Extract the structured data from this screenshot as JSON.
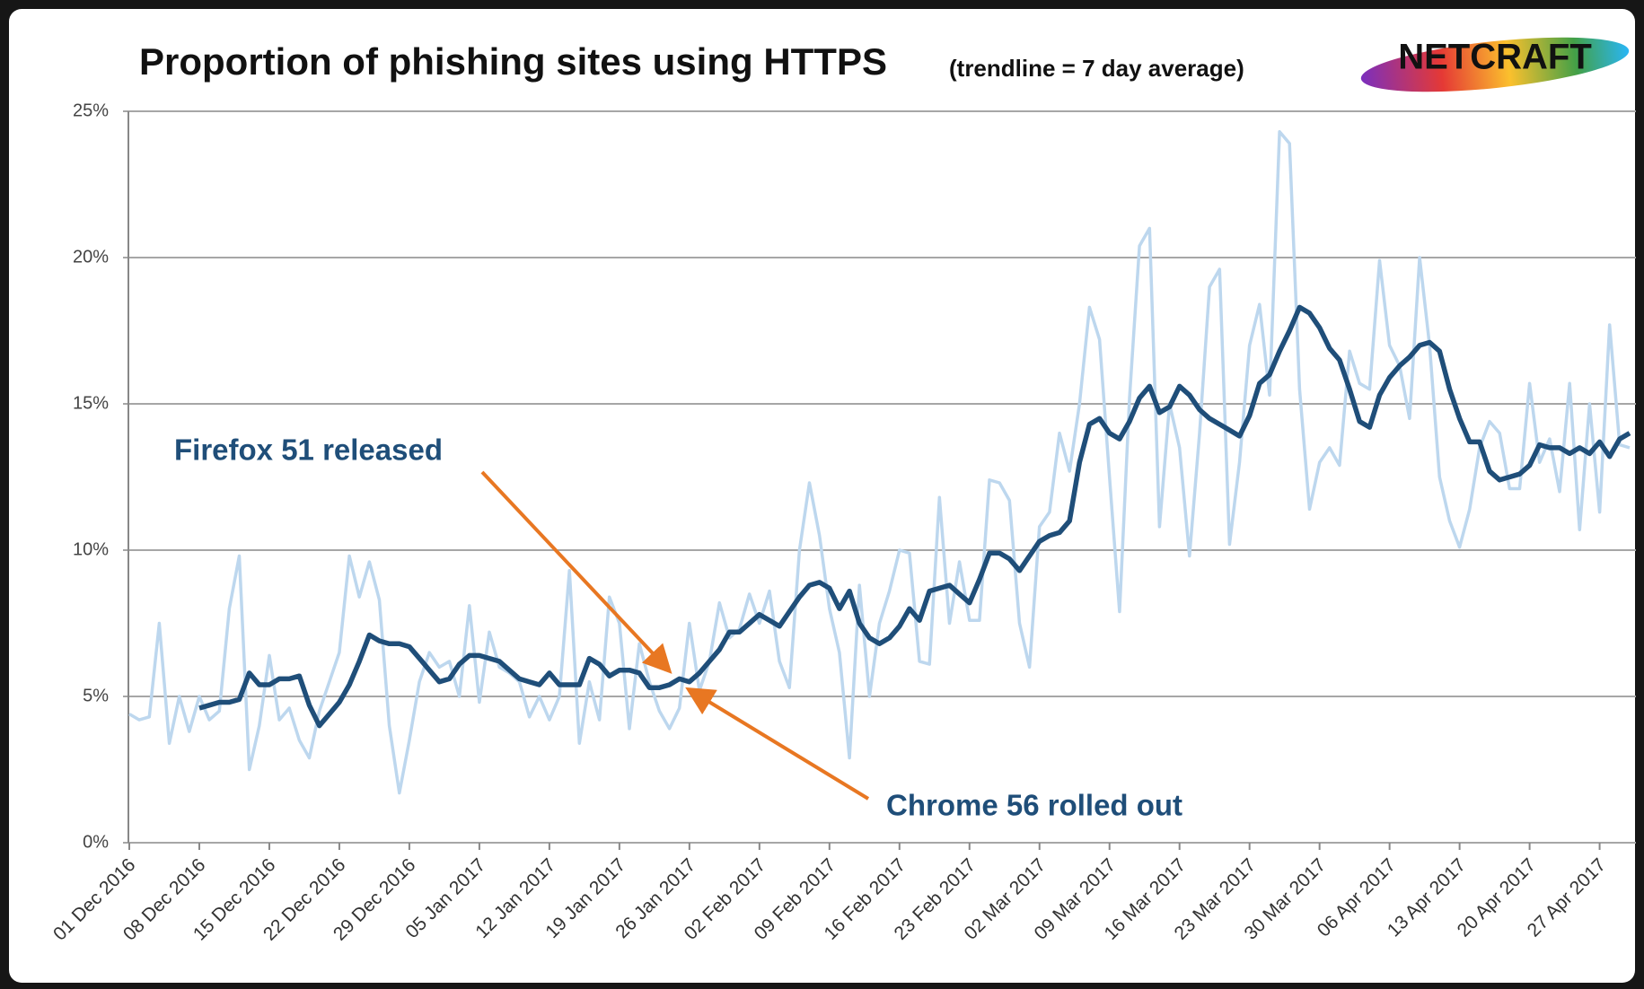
{
  "chart_data": {
    "type": "line",
    "title": "Proportion of phishing sites using HTTPS",
    "subtitle": "(trendline = 7 day average)",
    "logo": "NETCRAFT",
    "annotations": [
      "Firefox 51 released",
      "Chrome 56 rolled out"
    ],
    "categories": [
      "01 Dec 2016",
      null,
      null,
      null,
      null,
      null,
      null,
      "08 Dec 2016",
      null,
      null,
      null,
      null,
      null,
      null,
      "15 Dec 2016",
      null,
      null,
      null,
      null,
      null,
      null,
      "22 Dec 2016",
      null,
      null,
      null,
      null,
      null,
      null,
      "29 Dec 2016",
      null,
      null,
      null,
      null,
      null,
      null,
      "05 Jan 2017",
      null,
      null,
      null,
      null,
      null,
      null,
      "12 Jan 2017",
      null,
      null,
      null,
      null,
      null,
      null,
      "19 Jan 2017",
      null,
      null,
      null,
      null,
      null,
      null,
      "26 Jan 2017",
      null,
      null,
      null,
      null,
      null,
      null,
      "02 Feb 2017",
      null,
      null,
      null,
      null,
      null,
      null,
      "09 Feb 2017",
      null,
      null,
      null,
      null,
      null,
      null,
      "16 Feb 2017",
      null,
      null,
      null,
      null,
      null,
      null,
      "23 Feb 2017",
      null,
      null,
      null,
      null,
      null,
      null,
      "02 Mar 2017",
      null,
      null,
      null,
      null,
      null,
      null,
      "09 Mar 2017",
      null,
      null,
      null,
      null,
      null,
      null,
      "16 Mar 2017",
      null,
      null,
      null,
      null,
      null,
      null,
      "23 Mar 2017",
      null,
      null,
      null,
      null,
      null,
      null,
      "30 Mar 2017",
      null,
      null,
      null,
      null,
      null,
      null,
      "06 Apr 2017",
      null,
      null,
      null,
      null,
      null,
      null,
      "13 Apr 2017",
      null,
      null,
      null,
      null,
      null,
      null,
      "20 Apr 2017",
      null,
      null,
      null,
      null,
      null,
      null,
      "27 Apr 2017",
      null,
      null,
      null
    ],
    "series": [
      {
        "color": "#bdd7ee",
        "values": [
          4.4,
          4.2,
          4.3,
          7.5,
          3.4,
          5.0,
          3.8,
          5.0,
          4.2,
          4.5,
          8.0,
          9.8,
          2.5,
          4.0,
          6.4,
          4.2,
          4.6,
          3.5,
          2.9,
          4.5,
          5.5,
          6.5,
          9.8,
          8.4,
          9.6,
          8.3,
          4.0,
          1.7,
          3.5,
          5.5,
          6.5,
          6.0,
          6.2,
          5.0,
          8.1,
          4.8,
          7.2,
          6.0,
          5.8,
          5.5,
          4.3,
          5.0,
          4.2,
          5.0,
          9.3,
          3.4,
          5.5,
          4.2,
          8.4,
          7.5,
          3.9,
          6.8,
          5.5,
          4.5,
          3.9,
          4.6,
          7.5,
          5.2,
          6.2,
          8.2,
          7.0,
          7.3,
          8.5,
          7.5,
          8.6,
          6.2,
          5.3,
          10.0,
          12.3,
          10.5,
          8.0,
          6.5,
          2.9,
          8.8,
          5.0,
          7.5,
          8.6,
          10.0,
          9.9,
          6.2,
          6.1,
          11.8,
          7.5,
          9.6,
          7.6,
          7.6,
          12.4,
          12.3,
          11.7,
          7.5,
          6.0,
          10.8,
          11.3,
          14.0,
          12.7,
          15.0,
          18.3,
          17.2,
          12.5,
          7.9,
          15.2,
          20.4,
          21.0,
          10.8,
          15.0,
          13.5,
          9.8,
          14.0,
          19.0,
          19.6,
          10.2,
          13.0,
          17.0,
          18.4,
          15.3,
          24.3,
          23.9,
          15.5,
          11.4,
          13.0,
          13.5,
          12.9,
          16.8,
          15.7,
          15.5,
          19.9,
          17.0,
          16.3,
          14.5,
          20.0,
          17.0,
          12.5,
          11.0,
          10.1,
          11.4,
          13.5,
          14.4,
          14.0,
          12.1,
          12.1,
          15.7,
          13.0,
          13.8,
          12.0,
          15.7,
          10.7,
          15.0,
          11.3,
          17.7,
          13.6,
          13.5
        ]
      },
      {
        "color": "#1f4e79",
        "values": [
          null,
          null,
          null,
          null,
          null,
          null,
          null,
          4.6,
          4.7,
          4.8,
          4.8,
          4.9,
          5.8,
          5.4,
          5.4,
          5.6,
          5.6,
          5.7,
          4.7,
          4.0,
          4.4,
          4.8,
          5.4,
          6.2,
          7.1,
          6.9,
          6.8,
          6.8,
          6.7,
          6.3,
          5.9,
          5.5,
          5.6,
          6.1,
          6.4,
          6.4,
          6.3,
          6.2,
          5.9,
          5.6,
          5.5,
          5.4,
          5.8,
          5.4,
          5.4,
          5.4,
          6.3,
          6.1,
          5.7,
          5.9,
          5.9,
          5.8,
          5.3,
          5.3,
          5.4,
          5.6,
          5.5,
          5.8,
          6.2,
          6.6,
          7.2,
          7.2,
          7.5,
          7.8,
          7.6,
          7.4,
          7.9,
          8.4,
          8.8,
          8.9,
          8.7,
          8.0,
          8.6,
          7.5,
          7.0,
          6.8,
          7.0,
          7.4,
          8.0,
          7.6,
          8.6,
          8.7,
          8.8,
          8.5,
          8.2,
          9.0,
          9.9,
          9.9,
          9.7,
          9.3,
          9.8,
          10.3,
          10.5,
          10.6,
          11.0,
          13.0,
          14.3,
          14.5,
          14.0,
          13.8,
          14.4,
          15.2,
          15.6,
          14.7,
          14.9,
          15.6,
          15.3,
          14.8,
          14.5,
          14.3,
          14.1,
          13.9,
          14.6,
          15.7,
          16.0,
          16.8,
          17.5,
          18.3,
          18.1,
          17.6,
          16.9,
          16.5,
          15.5,
          14.4,
          14.2,
          15.3,
          15.9,
          16.3,
          16.6,
          17.0,
          17.1,
          16.8,
          15.5,
          14.5,
          13.7,
          13.7,
          12.7,
          12.4,
          12.5,
          12.6,
          12.9,
          13.6,
          13.5,
          13.5,
          13.3,
          13.5,
          13.3,
          13.7,
          13.2,
          13.8,
          14.0
        ]
      }
    ],
    "ylim": [
      0,
      25
    ],
    "yticks": [
      {
        "value": 0,
        "label": "0%"
      },
      {
        "value": 5,
        "label": "5%"
      },
      {
        "value": 10,
        "label": "10%"
      },
      {
        "value": 15,
        "label": "15%"
      },
      {
        "value": 20,
        "label": "20%"
      },
      {
        "value": 25,
        "label": "25%"
      }
    ],
    "grid": true
  }
}
